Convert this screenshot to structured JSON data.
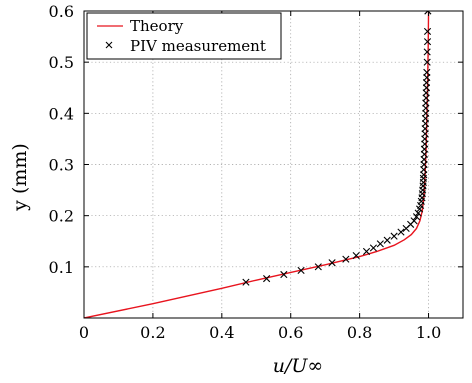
{
  "chart_data": {
    "type": "line",
    "xlabel": "u/U∞",
    "ylabel": "y (mm)",
    "xlim": [
      0,
      1.1
    ],
    "ylim": [
      0,
      0.6
    ],
    "xticks": [
      0,
      0.2,
      0.4,
      0.6,
      0.8,
      1.0
    ],
    "xtick_labels": [
      "0",
      "0.2",
      "0.4",
      "0.6",
      "0.8",
      "1.0"
    ],
    "yticks": [
      0.1,
      0.2,
      0.3,
      0.4,
      0.5,
      0.6
    ],
    "ytick_labels": [
      "0.1",
      "0.2",
      "0.3",
      "0.4",
      "0.5",
      "0.6"
    ],
    "grid": true,
    "legend_position": "top-left",
    "series": [
      {
        "name": "Theory",
        "kind": "line",
        "color": "#e8141e",
        "x": [
          0,
          0.2,
          0.4,
          0.5,
          0.6,
          0.7,
          0.8,
          0.85,
          0.9,
          0.93,
          0.95,
          0.965,
          0.975,
          0.982,
          0.987,
          0.99,
          0.993,
          0.995,
          0.997,
          0.999,
          1.0
        ],
        "y": [
          0,
          0.028,
          0.058,
          0.074,
          0.089,
          0.104,
          0.12,
          0.13,
          0.142,
          0.153,
          0.163,
          0.175,
          0.19,
          0.21,
          0.24,
          0.28,
          0.33,
          0.39,
          0.45,
          0.53,
          0.6
        ]
      },
      {
        "name": "PIV measurement",
        "kind": "scatter",
        "marker": "x",
        "color": "#000000",
        "x": [
          0.47,
          0.53,
          0.58,
          0.63,
          0.68,
          0.72,
          0.76,
          0.79,
          0.82,
          0.84,
          0.86,
          0.88,
          0.9,
          0.92,
          0.935,
          0.948,
          0.958,
          0.965,
          0.97,
          0.974,
          0.977,
          0.979,
          0.981,
          0.982,
          0.983,
          0.984,
          0.985,
          0.985,
          0.986,
          0.986,
          0.987,
          0.987,
          0.988,
          0.988,
          0.989,
          0.989,
          0.99,
          0.99,
          0.991,
          0.991,
          0.992,
          0.992,
          0.992,
          0.993,
          0.993,
          0.994,
          0.994,
          0.995,
          0.995,
          0.996,
          0.996,
          0.997,
          0.997,
          0.998
        ],
        "y": [
          0.07,
          0.077,
          0.085,
          0.093,
          0.1,
          0.108,
          0.115,
          0.122,
          0.13,
          0.137,
          0.145,
          0.152,
          0.16,
          0.168,
          0.175,
          0.183,
          0.19,
          0.198,
          0.205,
          0.213,
          0.22,
          0.228,
          0.235,
          0.243,
          0.25,
          0.258,
          0.265,
          0.273,
          0.28,
          0.29,
          0.3,
          0.31,
          0.32,
          0.33,
          0.34,
          0.35,
          0.36,
          0.37,
          0.38,
          0.39,
          0.4,
          0.41,
          0.42,
          0.43,
          0.44,
          0.45,
          0.46,
          0.47,
          0.48,
          0.5,
          0.52,
          0.54,
          0.56,
          0.6
        ]
      }
    ]
  }
}
